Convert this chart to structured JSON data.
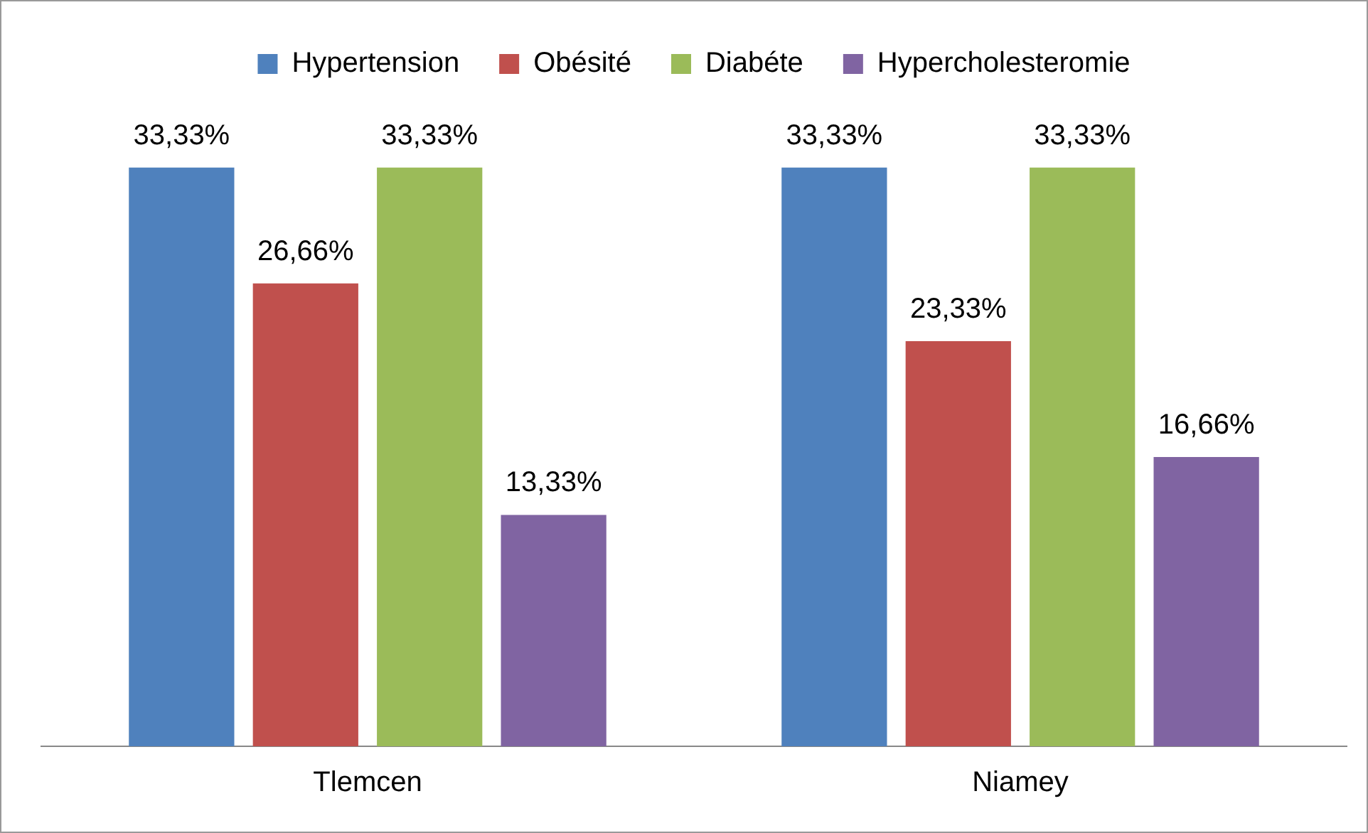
{
  "chart_data": {
    "type": "bar",
    "categories": [
      "Tlemcen",
      "Niamey"
    ],
    "series": [
      {
        "name": "Hypertension",
        "color": "#4f81bd",
        "values": [
          33.33,
          33.33
        ],
        "value_labels": [
          "33,33%",
          "33,33%"
        ]
      },
      {
        "name": "Obésité",
        "color": "#c0504d",
        "values": [
          26.66,
          23.33
        ],
        "value_labels": [
          "26,66%",
          "23,33%"
        ]
      },
      {
        "name": "Diabéte",
        "color": "#9bbb59",
        "values": [
          33.33,
          33.33
        ],
        "value_labels": [
          "33,33%",
          "33,33%"
        ]
      },
      {
        "name": "Hypercholesteromie",
        "color": "#8064a2",
        "values": [
          13.33,
          16.66
        ],
        "value_labels": [
          "13,33%",
          "16,66%"
        ]
      }
    ],
    "legend": "top",
    "grid": false
  }
}
